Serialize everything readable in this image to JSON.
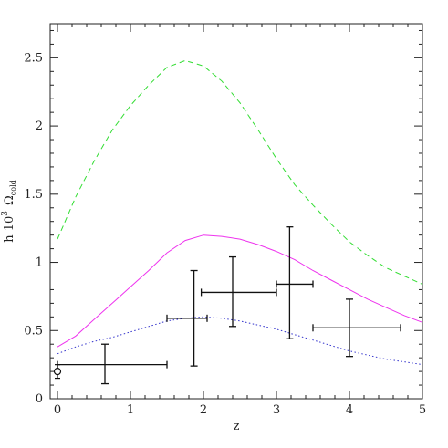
{
  "chart_data": {
    "type": "line",
    "xlabel": "z",
    "ylabel": {
      "main": "h 10",
      "superscript": "3",
      "symbol": "Ω",
      "subscript": "cold"
    },
    "xlim": [
      -0.1,
      5
    ],
    "ylim": [
      0,
      2.75
    ],
    "xticks": [
      0,
      1,
      2,
      3,
      4,
      5
    ],
    "xtick_labels": [
      "0",
      "1",
      "2",
      "3",
      "4",
      "5"
    ],
    "yticks": [
      0,
      0.5,
      1,
      1.5,
      2,
      2.5
    ],
    "ytick_labels": [
      "0",
      "0.5",
      "1",
      "1.5",
      "2",
      "2.5"
    ],
    "grid": false,
    "series": [
      {
        "style": "dashed",
        "color": "#33dd33",
        "x": [
          0,
          0.25,
          0.5,
          0.75,
          1.0,
          1.25,
          1.5,
          1.75,
          2.0,
          2.25,
          2.5,
          2.75,
          3.0,
          3.25,
          3.5,
          3.75,
          4.0,
          4.25,
          4.5,
          4.75,
          5.0
        ],
        "y": [
          1.17,
          1.48,
          1.74,
          1.97,
          2.15,
          2.3,
          2.43,
          2.48,
          2.44,
          2.33,
          2.17,
          1.97,
          1.76,
          1.57,
          1.42,
          1.28,
          1.15,
          1.05,
          0.96,
          0.9,
          0.84
        ]
      },
      {
        "style": "solid",
        "color": "#ee33ee",
        "x": [
          0,
          0.25,
          0.5,
          0.75,
          1.0,
          1.25,
          1.5,
          1.75,
          2.0,
          2.25,
          2.5,
          2.75,
          3.0,
          3.25,
          3.5,
          3.75,
          4.0,
          4.25,
          4.5,
          4.75,
          5.0
        ],
        "y": [
          0.38,
          0.46,
          0.58,
          0.7,
          0.82,
          0.94,
          1.07,
          1.16,
          1.2,
          1.19,
          1.17,
          1.13,
          1.08,
          1.02,
          0.94,
          0.87,
          0.8,
          0.73,
          0.67,
          0.61,
          0.56
        ]
      },
      {
        "style": "dotted",
        "color": "#3333cc",
        "x": [
          0,
          0.25,
          0.5,
          0.75,
          1.0,
          1.25,
          1.5,
          1.75,
          2.0,
          2.25,
          2.5,
          2.75,
          3.0,
          3.25,
          3.5,
          3.75,
          4.0,
          4.25,
          4.5,
          4.75,
          5.0
        ],
        "y": [
          0.33,
          0.38,
          0.42,
          0.45,
          0.49,
          0.53,
          0.57,
          0.59,
          0.6,
          0.59,
          0.57,
          0.54,
          0.51,
          0.47,
          0.43,
          0.39,
          0.35,
          0.32,
          0.29,
          0.27,
          0.25
        ]
      }
    ],
    "points_with_errors": [
      {
        "x": 0.0,
        "y": 0.25,
        "xerr": [
          0.0,
          1.5
        ],
        "yerr": [
          0.0,
          0.0
        ]
      },
      {
        "x": 0.65,
        "y": 0.25,
        "xerr": [
          0.0,
          0.0
        ],
        "yerr": [
          0.11,
          0.4
        ]
      },
      {
        "x": 1.87,
        "y": 0.59,
        "xerr": [
          1.5,
          2.05
        ],
        "yerr": [
          0.24,
          0.94
        ]
      },
      {
        "x": 2.4,
        "y": 0.78,
        "xerr": [
          1.97,
          3.0
        ],
        "yerr": [
          0.53,
          1.04
        ]
      },
      {
        "x": 3.18,
        "y": 0.84,
        "xerr": [
          3.0,
          3.5
        ],
        "yerr": [
          0.44,
          1.26
        ]
      },
      {
        "x": 4.0,
        "y": 0.52,
        "xerr": [
          3.5,
          4.7
        ],
        "yerr": [
          0.31,
          0.73
        ]
      }
    ],
    "open_point": {
      "x": 0.0,
      "y": 0.2,
      "yerr": [
        0.15,
        0.25
      ]
    }
  }
}
